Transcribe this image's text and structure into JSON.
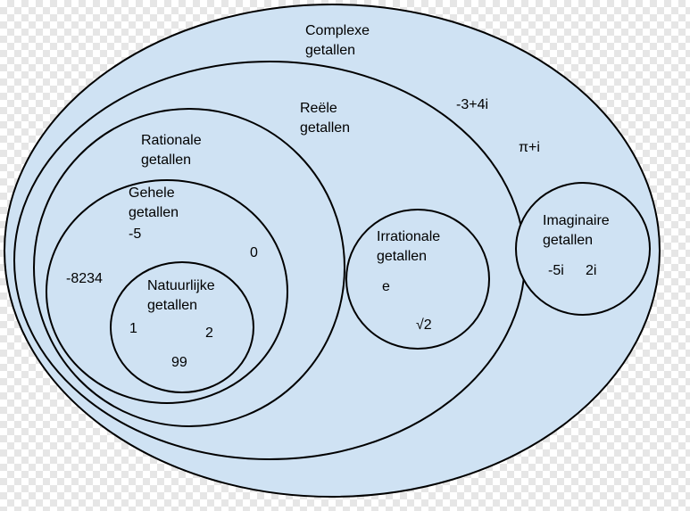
{
  "colors": {
    "fill": "#cfe2f3",
    "stroke": "#000000"
  },
  "sets": {
    "complex": {
      "line1": "Complexe",
      "line2": "getallen"
    },
    "real": {
      "line1": "Reële",
      "line2": "getallen"
    },
    "rational": {
      "line1": "Rationale",
      "line2": "getallen"
    },
    "integer": {
      "line1": "Gehele",
      "line2": "getallen"
    },
    "natural": {
      "line1": "Natuurlijke",
      "line2": "getallen"
    },
    "irrational": {
      "line1": "Irrationale",
      "line2": "getallen"
    },
    "imaginary": {
      "line1": "Imaginaire",
      "line2": "getallen"
    }
  },
  "examples": {
    "complex": [
      "-3+4i",
      "π+i"
    ],
    "integer": [
      "-5",
      "0",
      "-8234"
    ],
    "natural": [
      "1",
      "2",
      "99"
    ],
    "irrational": [
      "e",
      "√2"
    ],
    "imaginary": [
      "-5i",
      "2i"
    ]
  }
}
